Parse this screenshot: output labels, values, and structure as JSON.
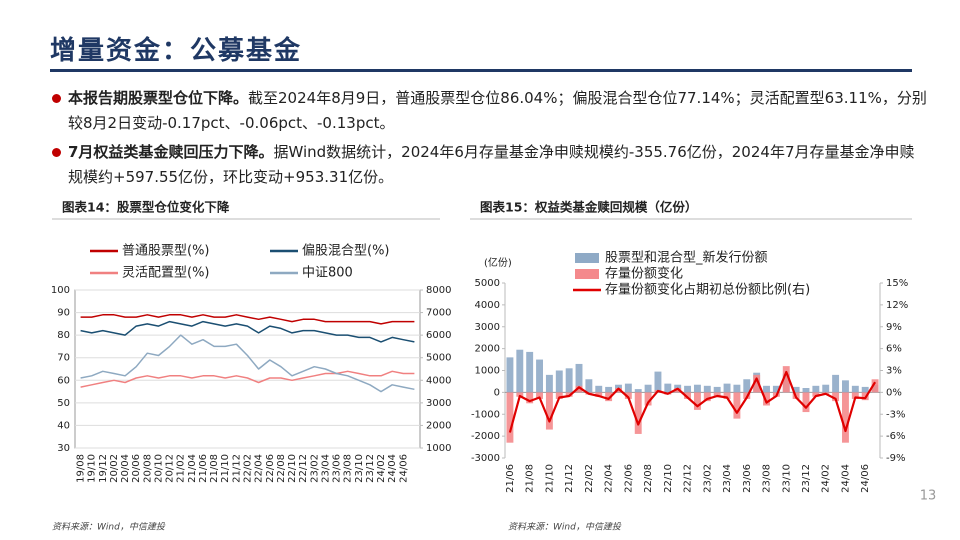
{
  "header": {
    "title": "增量资金：公募基金"
  },
  "bullets": [
    {
      "lead": "本报告期股票型仓位下降。",
      "text": "截至2024年8月9日，普通股票型仓位86.04%；偏股混合型仓位77.14%；灵活配置型63.11%，分别较8月2日变动-0.17pct、-0.06pct、-0.13pct。"
    },
    {
      "lead": "7月权益类基金赎回压力下降。",
      "text": "据Wind数据统计，2024年6月存量基金净申赎规模约-355.76亿份，2024年7月存量基金净申赎规模约+597.55亿份，环比变动+953.31亿份。"
    }
  ],
  "page_number": "13",
  "chart_data": [
    {
      "type": "line",
      "title": "图表14：股票型仓位变化下降",
      "source": "资料来源：Wind，中信建投",
      "grid": true,
      "categories": [
        "19/08",
        "19/10",
        "19/12",
        "20/02",
        "20/04",
        "20/06",
        "20/08",
        "20/10",
        "20/12",
        "21/02",
        "21/04",
        "21/06",
        "21/08",
        "21/10",
        "21/12",
        "22/02",
        "22/04",
        "22/06",
        "22/08",
        "22/10",
        "22/12",
        "23/02",
        "23/04",
        "23/06",
        "23/08",
        "23/10",
        "23/12",
        "24/02",
        "24/04",
        "24/06",
        null
      ],
      "ylim": [
        30,
        100
      ],
      "yticks": [
        30,
        40,
        50,
        60,
        70,
        80,
        90,
        100
      ],
      "y2lim": [
        1000,
        8000
      ],
      "y2ticks": [
        1000,
        2000,
        3000,
        4000,
        5000,
        6000,
        7000,
        8000
      ],
      "series": [
        {
          "name": "普通股票型(%)",
          "color": "#c00000",
          "values": [
            88,
            88,
            89,
            89,
            88,
            88,
            89,
            88,
            89,
            89,
            88,
            89,
            88,
            88,
            89,
            88,
            87,
            88,
            87,
            86,
            87,
            87,
            86,
            86,
            86,
            86,
            86,
            85,
            86,
            86,
            86
          ]
        },
        {
          "name": "偏股混合型(%)",
          "color": "#1b4f72",
          "values": [
            82,
            81,
            82,
            81,
            80,
            84,
            85,
            84,
            86,
            85,
            84,
            86,
            85,
            84,
            85,
            84,
            81,
            84,
            83,
            81,
            82,
            82,
            81,
            80,
            80,
            79,
            79,
            77,
            79,
            78,
            77
          ]
        },
        {
          "name": "灵活配置型(%)",
          "color": "#f08080",
          "values": [
            57,
            58,
            59,
            60,
            59,
            61,
            62,
            61,
            62,
            62,
            61,
            62,
            62,
            61,
            62,
            61,
            59,
            61,
            61,
            60,
            61,
            62,
            63,
            63,
            64,
            63,
            62,
            62,
            64,
            63,
            63
          ]
        },
        {
          "name": "中证800",
          "color": "#8ea9c1",
          "axis": "y2",
          "values": [
            4100,
            4200,
            4400,
            4300,
            4200,
            4600,
            5200,
            5100,
            5500,
            6000,
            5600,
            5800,
            5500,
            5500,
            5600,
            5100,
            4500,
            4900,
            4600,
            4200,
            4400,
            4600,
            4500,
            4300,
            4200,
            4000,
            3800,
            3500,
            3800,
            3700,
            3600
          ]
        }
      ]
    },
    {
      "type": "bar",
      "title": "图表15：权益类基金赎回规模（亿份）",
      "source": "资料来源：Wind，中信建投",
      "grid": false,
      "y_label": "(亿份)",
      "categories": [
        "21/06",
        null,
        "21/08",
        null,
        "21/10",
        null,
        "21/12",
        null,
        "22/02",
        null,
        "22/04",
        null,
        "22/06",
        null,
        "22/08",
        null,
        "22/10",
        null,
        "22/12",
        null,
        "23/02",
        null,
        "23/04",
        null,
        "23/06",
        null,
        "23/08",
        null,
        "23/10",
        null,
        "23/12",
        null,
        "24/02",
        null,
        "24/04",
        null,
        "24/06",
        null
      ],
      "ylim": [
        -3000,
        5000
      ],
      "yticks": [
        -3000,
        -2000,
        -1000,
        0,
        1000,
        2000,
        3000,
        4000,
        5000
      ],
      "y2lim": [
        -9,
        15
      ],
      "y2ticks": [
        {
          "value": -9,
          "label": "-9%"
        },
        {
          "value": -6,
          "label": "-6%"
        },
        {
          "value": -3,
          "label": "-3%"
        },
        {
          "value": 0,
          "label": "0%"
        },
        {
          "value": 3,
          "label": "3%"
        },
        {
          "value": 6,
          "label": "6%"
        },
        {
          "value": 9,
          "label": "9%"
        },
        {
          "value": 12,
          "label": "12%"
        },
        {
          "value": 15,
          "label": "15%"
        }
      ],
      "series": [
        {
          "name": "股票型和混合型_新发行份额",
          "type": "bar",
          "color": "#8faac6",
          "values": [
            1600,
            1950,
            1850,
            1500,
            800,
            1000,
            1100,
            1300,
            600,
            300,
            250,
            350,
            400,
            150,
            350,
            950,
            400,
            350,
            300,
            350,
            300,
            250,
            400,
            350,
            600,
            900,
            300,
            300,
            850,
            250,
            200,
            300,
            350,
            800,
            550,
            300,
            250,
            350
          ]
        },
        {
          "name": "存量份额变化",
          "type": "bar",
          "color": "#f4898c",
          "values": [
            -2300,
            -200,
            -500,
            -300,
            -1700,
            -300,
            -200,
            300,
            -100,
            -200,
            -400,
            200,
            -300,
            -1900,
            -600,
            100,
            -100,
            200,
            -300,
            -800,
            -400,
            -200,
            -300,
            -1200,
            -300,
            800,
            -600,
            -200,
            1200,
            -300,
            -900,
            -200,
            -100,
            -400,
            -2300,
            -300,
            -356,
            598
          ]
        },
        {
          "name": "存量份额变化占期初总份额比例(右)",
          "type": "line",
          "axis": "y2",
          "color": "#e00000",
          "values": [
            -5.5,
            -0.5,
            -1.2,
            -0.7,
            -4,
            -0.7,
            -0.5,
            0.7,
            -0.2,
            -0.5,
            -0.9,
            0.5,
            -0.7,
            -4.4,
            -1.4,
            0.2,
            -0.2,
            0.5,
            -0.7,
            -1.9,
            -0.9,
            -0.5,
            -0.7,
            -2.8,
            -0.7,
            1.9,
            -1.4,
            -0.5,
            2.8,
            -0.7,
            -2.1,
            -0.5,
            -0.2,
            -0.9,
            -5.3,
            -0.7,
            -0.8,
            1.4
          ]
        }
      ]
    }
  ]
}
